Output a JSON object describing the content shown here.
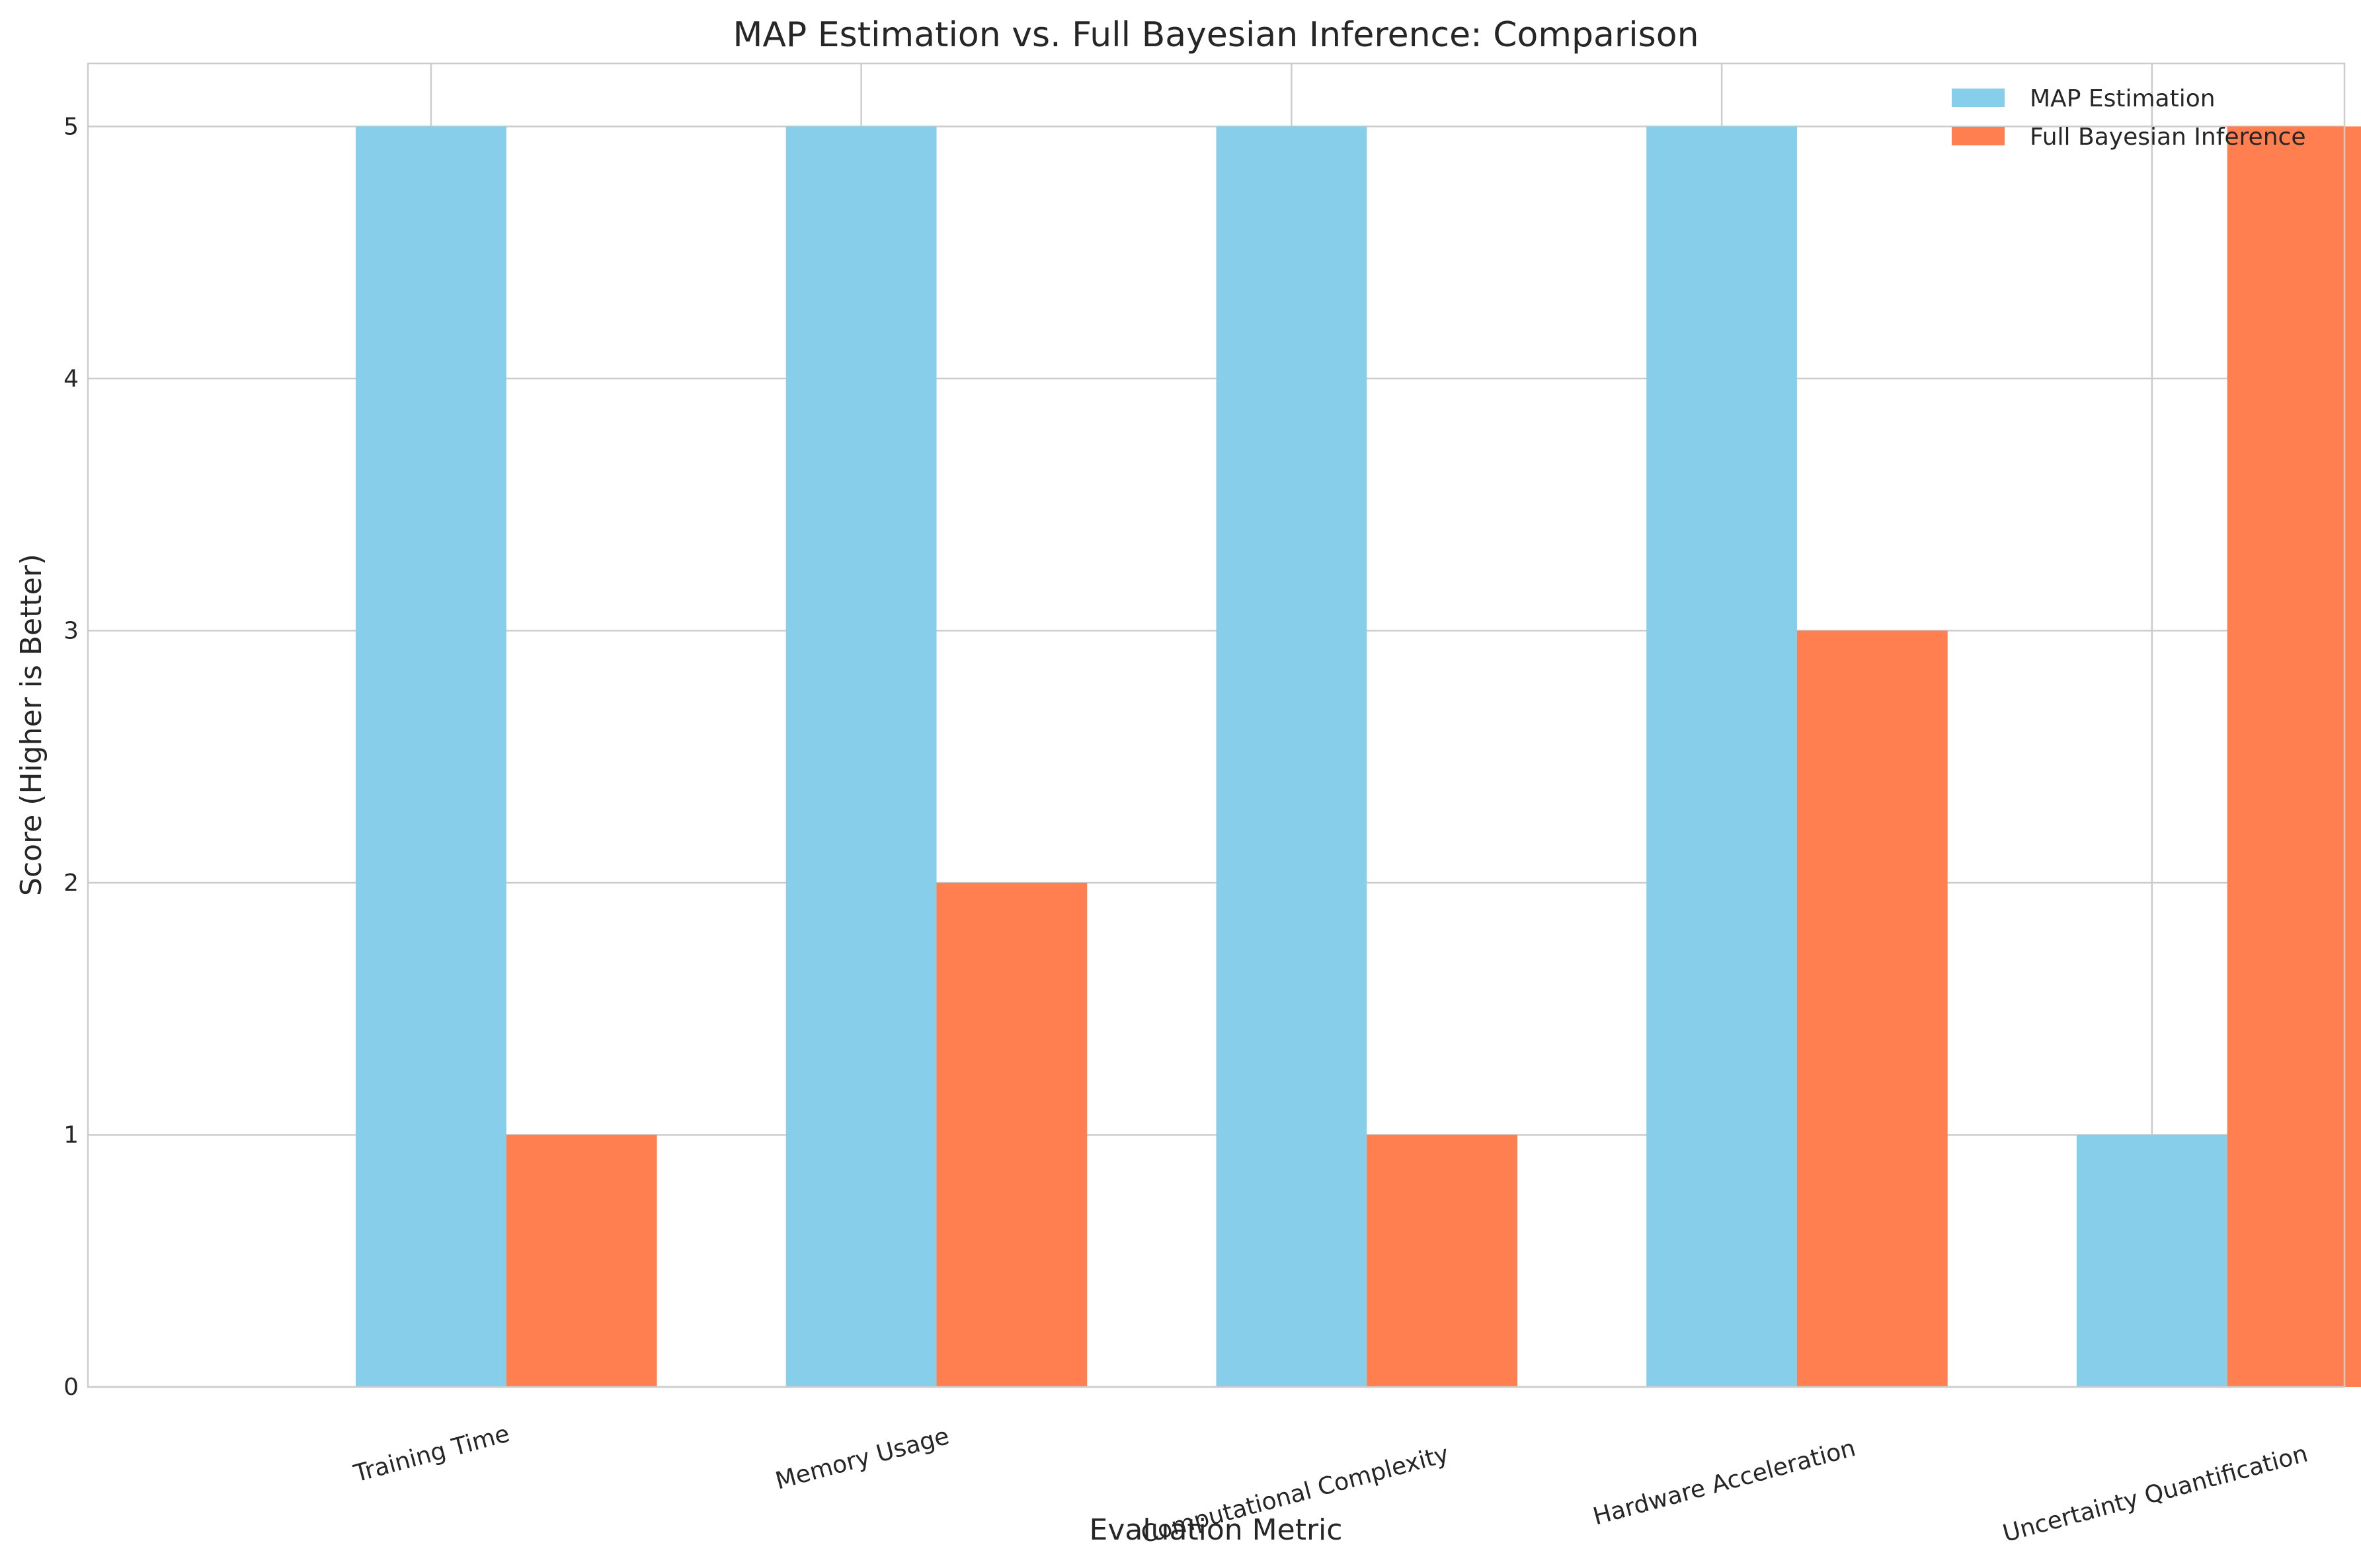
{
  "chart_data": {
    "type": "bar",
    "title": "MAP Estimation vs. Full Bayesian Inference: Comparison",
    "xlabel": "Evaluation Metric",
    "ylabel": "Score (Higher is Better)",
    "categories": [
      "Training Time",
      "Memory Usage",
      "Computational Complexity",
      "Hardware Acceleration",
      "Uncertainty Quantification"
    ],
    "series": [
      {
        "name": "MAP Estimation",
        "values": [
          5,
          5,
          5,
          5,
          1
        ],
        "color": "#87ceeb"
      },
      {
        "name": "Full Bayesian Inference",
        "values": [
          1,
          2,
          1,
          3,
          5
        ],
        "color": "#ff7f50"
      }
    ],
    "yticks": [
      "0",
      "1",
      "2",
      "3",
      "4",
      "5"
    ],
    "ylim": [
      0,
      5.25
    ],
    "grid": true,
    "legend_position": "top-right",
    "xtick_rotation": -15
  }
}
